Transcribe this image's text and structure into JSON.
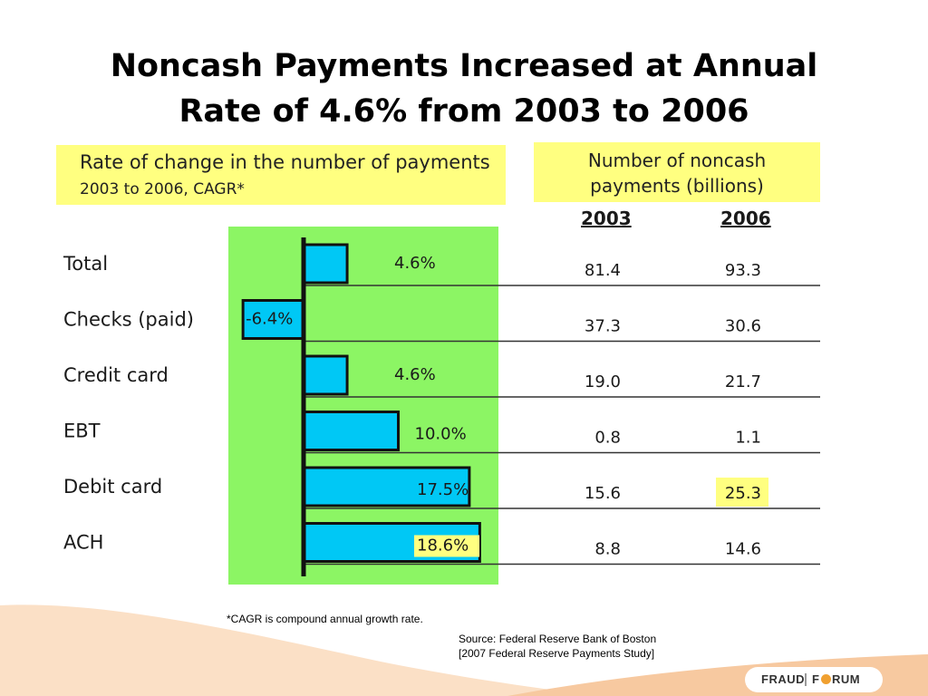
{
  "title": {
    "line1": "Noncash Payments Increased at Annual",
    "line2": "Rate of 4.6% from 2003 to 2006"
  },
  "left_header": {
    "line1": "Rate of change in the number of payments",
    "line2": "2003 to 2006, CAGR*"
  },
  "right_header": {
    "line1": "Number of noncash",
    "line2": "payments (billions)",
    "col_2003": "2003",
    "col_2006": "2006"
  },
  "colors": {
    "highlight_yellow": "#ffff80",
    "chart_bg_green": "#8cf564",
    "bar_fill": "#00c8f5",
    "bar_stroke": "#111111",
    "footer_orange": "#f7c9a0"
  },
  "chart_data": {
    "type": "bar",
    "orientation": "horizontal",
    "title": "Rate of change in the number of payments",
    "categories": [
      "Total",
      "Checks (paid)",
      "Credit card",
      "EBT",
      "Debit card",
      "ACH"
    ],
    "values": [
      4.6,
      -6.4,
      4.6,
      10.0,
      17.5,
      18.6
    ],
    "value_labels": [
      "4.6%",
      "-6.4%",
      "4.6%",
      "10.0%",
      "17.5%",
      "18.6%"
    ],
    "highlighted_label_index": 5,
    "table": {
      "columns": [
        "2003",
        "2006"
      ],
      "rows": [
        [
          "81.4",
          "93.3"
        ],
        [
          "37.3",
          "30.6"
        ],
        [
          "19.0",
          "21.7"
        ],
        [
          "0.8",
          "1.1"
        ],
        [
          "15.6",
          "25.3"
        ],
        [
          "8.8",
          "14.6"
        ]
      ],
      "highlighted_cell": [
        4,
        1
      ]
    }
  },
  "footnotes": {
    "cagr": "*CAGR is compound annual growth rate.",
    "source_line1": "Source: Federal Reserve Bank of Boston",
    "source_line2": "[2007 Federal Reserve Payments Study]"
  },
  "logo": {
    "part1": "FRAUD",
    "part2": "F",
    "part3": "RUM"
  }
}
